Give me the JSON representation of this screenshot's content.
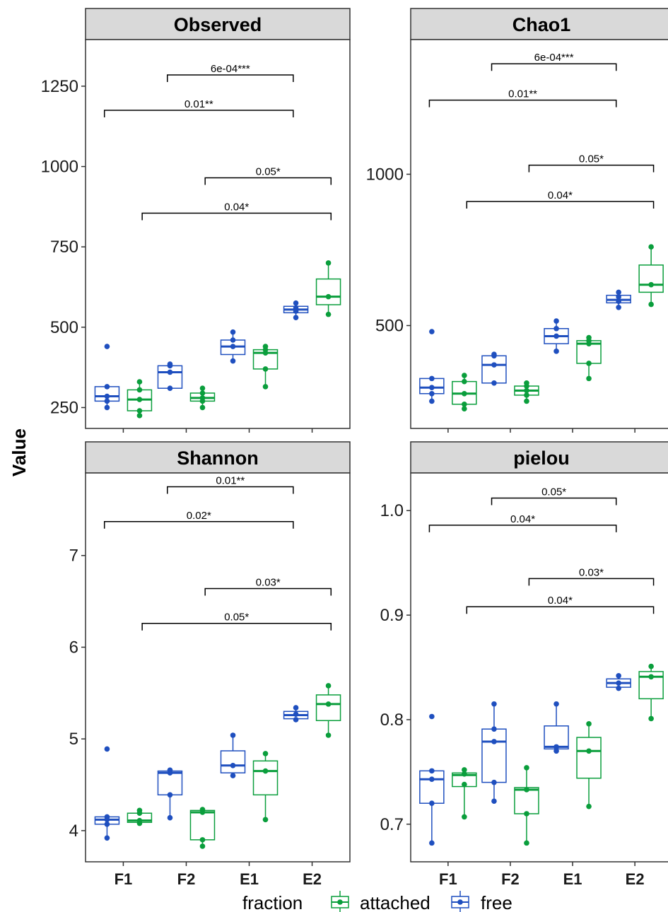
{
  "chart_data": {
    "type": "box",
    "ylabel": "Value",
    "x_categories": [
      "F1",
      "F2",
      "E1",
      "E2"
    ],
    "legend": {
      "title": "fraction",
      "entries": [
        {
          "name": "attached",
          "color": "#0a9e3c"
        },
        {
          "name": "free",
          "color": "#1f4fbf"
        }
      ],
      "position": "bottom"
    },
    "panels": [
      {
        "title": "Observed",
        "ylim": [
          185,
          1395
        ],
        "yticks": [
          250,
          500,
          750,
          1000,
          1250
        ],
        "groups": [
          {
            "x": "F1",
            "fraction": "free",
            "min": 250,
            "q1": 270,
            "median": 285,
            "q3": 315,
            "max": 315,
            "points": [
              250,
              270,
              285,
              315,
              440
            ],
            "outliers": [
              440
            ]
          },
          {
            "x": "F1",
            "fraction": "attached",
            "min": 225,
            "q1": 240,
            "median": 275,
            "q3": 305,
            "max": 330,
            "points": [
              225,
              240,
              275,
              305,
              330
            ]
          },
          {
            "x": "F2",
            "fraction": "free",
            "min": 310,
            "q1": 310,
            "median": 360,
            "q3": 380,
            "max": 385,
            "points": [
              310,
              360,
              380,
              385
            ]
          },
          {
            "x": "F2",
            "fraction": "attached",
            "min": 250,
            "q1": 270,
            "median": 280,
            "q3": 295,
            "max": 310,
            "points": [
              250,
              270,
              280,
              295,
              310
            ]
          },
          {
            "x": "E1",
            "fraction": "free",
            "min": 395,
            "q1": 415,
            "median": 440,
            "q3": 460,
            "max": 485,
            "points": [
              395,
              440,
              460,
              485
            ]
          },
          {
            "x": "E1",
            "fraction": "attached",
            "min": 315,
            "q1": 370,
            "median": 420,
            "q3": 430,
            "max": 440,
            "points": [
              315,
              370,
              420,
              430,
              440
            ]
          },
          {
            "x": "E2",
            "fraction": "free",
            "min": 530,
            "q1": 545,
            "median": 555,
            "q3": 565,
            "max": 575,
            "points": [
              530,
              550,
              560,
              575
            ]
          },
          {
            "x": "E2",
            "fraction": "attached",
            "min": 540,
            "q1": 570,
            "median": 595,
            "q3": 650,
            "max": 700,
            "points": [
              540,
              595,
              700
            ]
          }
        ],
        "comparisons": [
          {
            "x_from": 1.7,
            "x_to": 3.7,
            "label": "6e-04***",
            "y": 1285
          },
          {
            "x_from": 0.7,
            "x_to": 3.7,
            "label": "0.01**",
            "y": 1175
          },
          {
            "x_from": 2.3,
            "x_to": 4.3,
            "label": "0.05*",
            "y": 965
          },
          {
            "x_from": 1.3,
            "x_to": 4.3,
            "label": "0.04*",
            "y": 855
          }
        ]
      },
      {
        "title": "Chao1",
        "ylim": [
          160,
          1445
        ],
        "yticks": [
          500,
          1000
        ],
        "groups": [
          {
            "x": "F1",
            "fraction": "free",
            "min": 250,
            "q1": 275,
            "median": 295,
            "q3": 325,
            "max": 325,
            "points": [
              250,
              275,
              295,
              325,
              480
            ],
            "outliers": [
              480
            ]
          },
          {
            "x": "F1",
            "fraction": "attached",
            "min": 225,
            "q1": 240,
            "median": 275,
            "q3": 315,
            "max": 335,
            "points": [
              225,
              240,
              275,
              315,
              335
            ]
          },
          {
            "x": "F2",
            "fraction": "free",
            "min": 310,
            "q1": 310,
            "median": 370,
            "q3": 400,
            "max": 405,
            "points": [
              310,
              370,
              400,
              405
            ]
          },
          {
            "x": "F2",
            "fraction": "attached",
            "min": 250,
            "q1": 270,
            "median": 285,
            "q3": 300,
            "max": 310,
            "points": [
              250,
              270,
              285,
              300,
              310
            ]
          },
          {
            "x": "E1",
            "fraction": "free",
            "min": 415,
            "q1": 440,
            "median": 465,
            "q3": 490,
            "max": 515,
            "points": [
              415,
              465,
              490,
              515
            ]
          },
          {
            "x": "E1",
            "fraction": "attached",
            "min": 325,
            "q1": 375,
            "median": 440,
            "q3": 450,
            "max": 460,
            "points": [
              325,
              375,
              440,
              450,
              460
            ]
          },
          {
            "x": "E2",
            "fraction": "free",
            "min": 560,
            "q1": 575,
            "median": 585,
            "q3": 600,
            "max": 610,
            "points": [
              560,
              580,
              595,
              610
            ]
          },
          {
            "x": "E2",
            "fraction": "attached",
            "min": 570,
            "q1": 610,
            "median": 635,
            "q3": 700,
            "max": 760,
            "points": [
              570,
              635,
              760
            ]
          }
        ],
        "comparisons": [
          {
            "x_from": 1.7,
            "x_to": 3.7,
            "label": "6e-04***",
            "y": 1365
          },
          {
            "x_from": 0.7,
            "x_to": 3.7,
            "label": "0.01**",
            "y": 1245
          },
          {
            "x_from": 2.3,
            "x_to": 4.3,
            "label": "0.05*",
            "y": 1030
          },
          {
            "x_from": 1.3,
            "x_to": 4.3,
            "label": "0.04*",
            "y": 910
          }
        ]
      },
      {
        "title": "Shannon",
        "ylim": [
          3.66,
          7.9
        ],
        "yticks": [
          4,
          5,
          6,
          7
        ],
        "groups": [
          {
            "x": "F1",
            "fraction": "free",
            "min": 3.92,
            "q1": 4.07,
            "median": 4.12,
            "q3": 4.15,
            "max": 4.15,
            "points": [
              3.92,
              4.07,
              4.12,
              4.15,
              4.89
            ],
            "outliers": [
              4.89
            ]
          },
          {
            "x": "F1",
            "fraction": "attached",
            "min": 4.08,
            "q1": 4.09,
            "median": 4.11,
            "q3": 4.19,
            "max": 4.22,
            "points": [
              4.08,
              4.11,
              4.19,
              4.22
            ]
          },
          {
            "x": "F2",
            "fraction": "free",
            "min": 4.14,
            "q1": 4.39,
            "median": 4.63,
            "q3": 4.65,
            "max": 4.66,
            "points": [
              4.14,
              4.39,
              4.63,
              4.66
            ]
          },
          {
            "x": "F2",
            "fraction": "attached",
            "min": 3.83,
            "q1": 3.9,
            "median": 4.2,
            "q3": 4.22,
            "max": 4.23,
            "points": [
              3.83,
              3.9,
              4.2,
              4.23
            ]
          },
          {
            "x": "E1",
            "fraction": "free",
            "min": 4.6,
            "q1": 4.63,
            "median": 4.71,
            "q3": 4.87,
            "max": 5.04,
            "points": [
              4.6,
              4.71,
              5.04
            ]
          },
          {
            "x": "E1",
            "fraction": "attached",
            "min": 4.12,
            "q1": 4.39,
            "median": 4.65,
            "q3": 4.76,
            "max": 4.84,
            "points": [
              4.12,
              4.65,
              4.84
            ]
          },
          {
            "x": "E2",
            "fraction": "free",
            "min": 5.21,
            "q1": 5.22,
            "median": 5.26,
            "q3": 5.3,
            "max": 5.34,
            "points": [
              5.21,
              5.27,
              5.34
            ]
          },
          {
            "x": "E2",
            "fraction": "attached",
            "min": 5.04,
            "q1": 5.2,
            "median": 5.38,
            "q3": 5.48,
            "max": 5.58,
            "points": [
              5.04,
              5.38,
              5.58
            ]
          }
        ],
        "comparisons": [
          {
            "x_from": 1.7,
            "x_to": 3.7,
            "label": "0.01**",
            "y": 7.75
          },
          {
            "x_from": 0.7,
            "x_to": 3.7,
            "label": "0.02*",
            "y": 7.37
          },
          {
            "x_from": 2.3,
            "x_to": 4.3,
            "label": "0.03*",
            "y": 6.64
          },
          {
            "x_from": 1.3,
            "x_to": 4.3,
            "label": "0.05*",
            "y": 6.26
          }
        ]
      },
      {
        "title": "pielou",
        "ylim": [
          0.664,
          1.036
        ],
        "yticks": [
          0.7,
          0.8,
          0.9,
          1.0
        ],
        "ytick_labels": [
          "0.7",
          "0.8",
          "0.9",
          "1.0"
        ],
        "groups": [
          {
            "x": "F1",
            "fraction": "free",
            "min": 0.682,
            "q1": 0.72,
            "median": 0.743,
            "q3": 0.751,
            "max": 0.751,
            "points": [
              0.682,
              0.72,
              0.743,
              0.751,
              0.803
            ],
            "outliers": [
              0.803
            ]
          },
          {
            "x": "F1",
            "fraction": "attached",
            "min": 0.707,
            "q1": 0.736,
            "median": 0.747,
            "q3": 0.749,
            "max": 0.752,
            "points": [
              0.707,
              0.738,
              0.748,
              0.752
            ]
          },
          {
            "x": "F2",
            "fraction": "free",
            "min": 0.722,
            "q1": 0.74,
            "median": 0.779,
            "q3": 0.791,
            "max": 0.815,
            "points": [
              0.722,
              0.74,
              0.779,
              0.791,
              0.815
            ]
          },
          {
            "x": "F2",
            "fraction": "attached",
            "min": 0.682,
            "q1": 0.71,
            "median": 0.733,
            "q3": 0.735,
            "max": 0.754,
            "points": [
              0.682,
              0.71,
              0.733,
              0.754
            ]
          },
          {
            "x": "E1",
            "fraction": "free",
            "min": 0.77,
            "q1": 0.772,
            "median": 0.774,
            "q3": 0.794,
            "max": 0.815,
            "points": [
              0.77,
              0.774,
              0.815
            ]
          },
          {
            "x": "E1",
            "fraction": "attached",
            "min": 0.717,
            "q1": 0.744,
            "median": 0.77,
            "q3": 0.783,
            "max": 0.796,
            "points": [
              0.717,
              0.77,
              0.796
            ]
          },
          {
            "x": "E2",
            "fraction": "free",
            "min": 0.83,
            "q1": 0.831,
            "median": 0.835,
            "q3": 0.839,
            "max": 0.842,
            "points": [
              0.83,
              0.835,
              0.842
            ]
          },
          {
            "x": "E2",
            "fraction": "attached",
            "min": 0.801,
            "q1": 0.82,
            "median": 0.841,
            "q3": 0.846,
            "max": 0.851,
            "points": [
              0.801,
              0.841,
              0.851
            ]
          }
        ],
        "comparisons": [
          {
            "x_from": 1.7,
            "x_to": 3.7,
            "label": "0.05*",
            "y": 1.012
          },
          {
            "x_from": 0.7,
            "x_to": 3.7,
            "label": "0.04*",
            "y": 0.986
          },
          {
            "x_from": 2.3,
            "x_to": 4.3,
            "label": "0.03*",
            "y": 0.935
          },
          {
            "x_from": 1.3,
            "x_to": 4.3,
            "label": "0.04*",
            "y": 0.908
          }
        ]
      }
    ]
  }
}
